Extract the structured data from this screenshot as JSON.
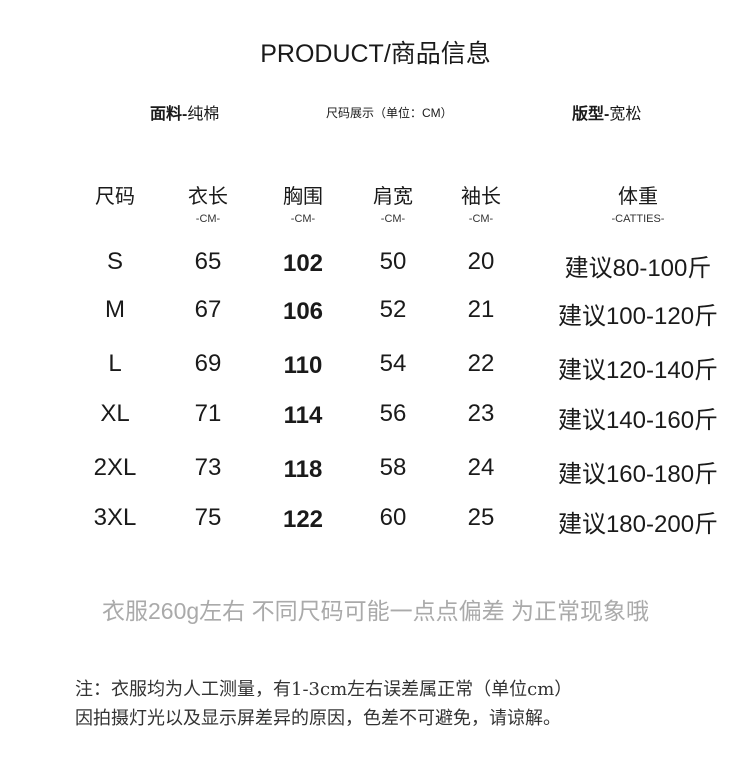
{
  "title": "PRODUCT/商品信息",
  "meta": {
    "fabric_label": "面料-",
    "fabric_value": "纯棉",
    "size_display": "尺码展示（单位：CM）",
    "fit_label": "版型-",
    "fit_value": "宽松"
  },
  "table": {
    "headers": [
      {
        "label": "尺码",
        "unit": ""
      },
      {
        "label": "衣长",
        "unit": "-CM-"
      },
      {
        "label": "胸围",
        "unit": "-CM-"
      },
      {
        "label": "肩宽",
        "unit": "-CM-"
      },
      {
        "label": "袖长",
        "unit": "-CM-"
      },
      {
        "label": "体重",
        "unit": "-CATTIES-"
      }
    ],
    "rows": [
      [
        "S",
        "65",
        "102",
        "50",
        "20",
        "建议80-100斤"
      ],
      [
        "M",
        "67",
        "106",
        "52",
        "21",
        "建议100-120斤"
      ],
      [
        "L",
        "69",
        "110",
        "54",
        "22",
        "建议120-140斤"
      ],
      [
        "XL",
        "71",
        "114",
        "56",
        "23",
        "建议140-160斤"
      ],
      [
        "2XL",
        "73",
        "118",
        "58",
        "24",
        "建议160-180斤"
      ],
      [
        "3XL",
        "75",
        "122",
        "60",
        "25",
        "建议180-200斤"
      ]
    ]
  },
  "weight_note": "衣服260g左右 不同尺码可能一点点偏差 为正常现象哦",
  "footnote_1": "注：衣服均为人工测量，有1-3cm左右误差属正常（单位cm）",
  "footnote_2": "因拍摄灯光以及显示屏差异的原因，色差不可避免，请谅解。"
}
